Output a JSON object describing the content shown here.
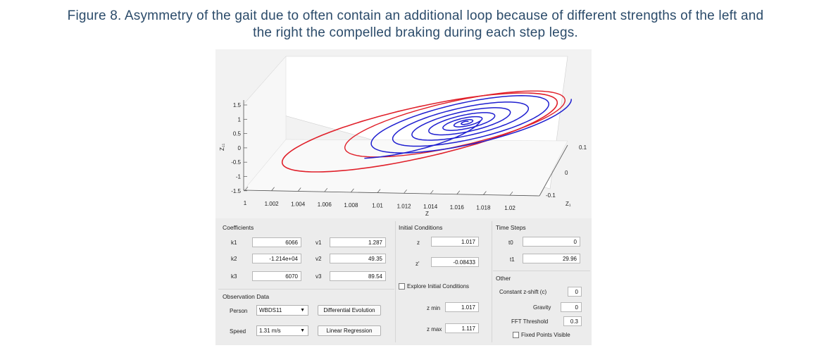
{
  "caption": {
    "label": "Figure 8",
    "line1_rest": ". Asymmetry of the gait due to often contain an additional loop because of different strengths of the left and",
    "line2": "the right the compelled braking during each step legs."
  },
  "plot": {
    "z_axis_label": "Z₁₁",
    "x_axis_label": "Z",
    "y_axis_label": "Z₁",
    "z_ticks": [
      "1.5",
      "1",
      "0.5",
      "0",
      "-0.5",
      "-1",
      "-1.5"
    ],
    "x_ticks": [
      "1",
      "1.002",
      "1.004",
      "1.006",
      "1.008",
      "1.01",
      "1.012",
      "1.014",
      "1.016",
      "1.018",
      "1.02"
    ],
    "y_ticks": [
      "-0.1",
      "0",
      "0.1"
    ],
    "colors": {
      "blue": "#1f1fd0",
      "red": "#e0202a"
    }
  },
  "coefficients": {
    "title": "Coefficients",
    "k1_label": "k1",
    "k1_value": "6066",
    "k2_label": "k2",
    "k2_value": "-1.214e+04",
    "k3_label": "k3",
    "k3_value": "6070",
    "v1_label": "v1",
    "v1_value": "1.287",
    "v2_label": "v2",
    "v2_value": "49.35",
    "v3_label": "v3",
    "v3_value": "89.54"
  },
  "initial_conditions": {
    "title": "Initial Conditions",
    "z_label": "z",
    "z_value": "1.017",
    "zp_label": "z'",
    "zp_value": "-0.08433",
    "explore_label": "Explore Initial Conditions",
    "zmin_label": "z min",
    "zmin_value": "1.017",
    "zmax_label": "z max",
    "zmax_value": "1.117"
  },
  "time_steps": {
    "title": "Time Steps",
    "t0_label": "t0",
    "t0_value": "0",
    "t1_label": "t1",
    "t1_value": "29.96"
  },
  "other": {
    "title": "Other",
    "zshift_label": "Constant z-shift (c)",
    "zshift_value": "0",
    "gravity_label": "Gravity",
    "gravity_value": "0",
    "fft_label": "FFT Threshold",
    "fft_value": "0.3",
    "fixed_points_label": "Fixed Points Visible"
  },
  "observation": {
    "title": "Observation Data",
    "person_label": "Person",
    "person_value": "WBDS11",
    "speed_label": "Speed",
    "speed_value": "1.31 m/s",
    "diff_evo_label": "Differential Evolution",
    "lin_reg_label": "Linear Regression"
  }
}
